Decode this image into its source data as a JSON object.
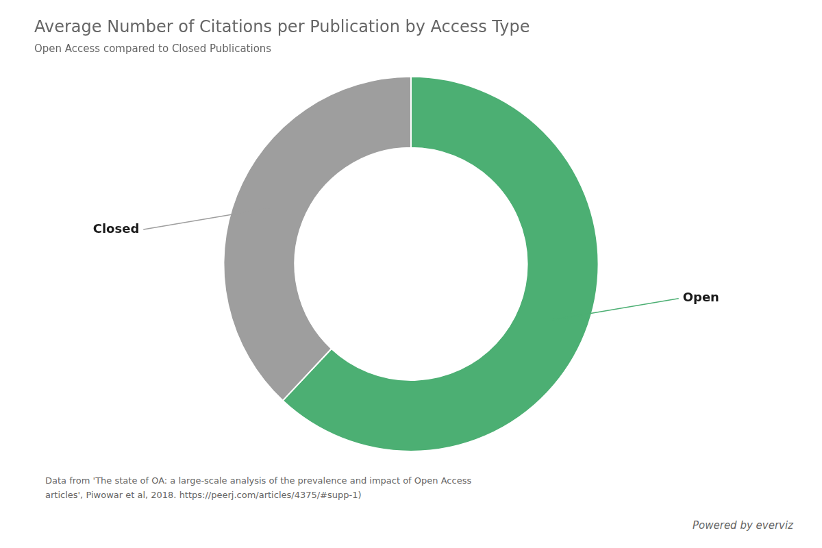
{
  "chart_data": {
    "type": "doughnut",
    "title": "Average Number of Citations per Publication by Access Type",
    "subtitle": "Open Access compared to Closed Publications",
    "categories": [
      "Open",
      "Closed"
    ],
    "values": [
      62,
      38
    ],
    "colors": [
      "#4caf73",
      "#9e9e9e"
    ],
    "legend": false,
    "footnote": "Data from 'The state of OA: a large-scale analysis of the prevalence and impact of Open Access\narticles', Piwowar et al, 2018. https://peerj.com/articles/4375/#supp-1)",
    "branding": "Powered by everviz"
  }
}
